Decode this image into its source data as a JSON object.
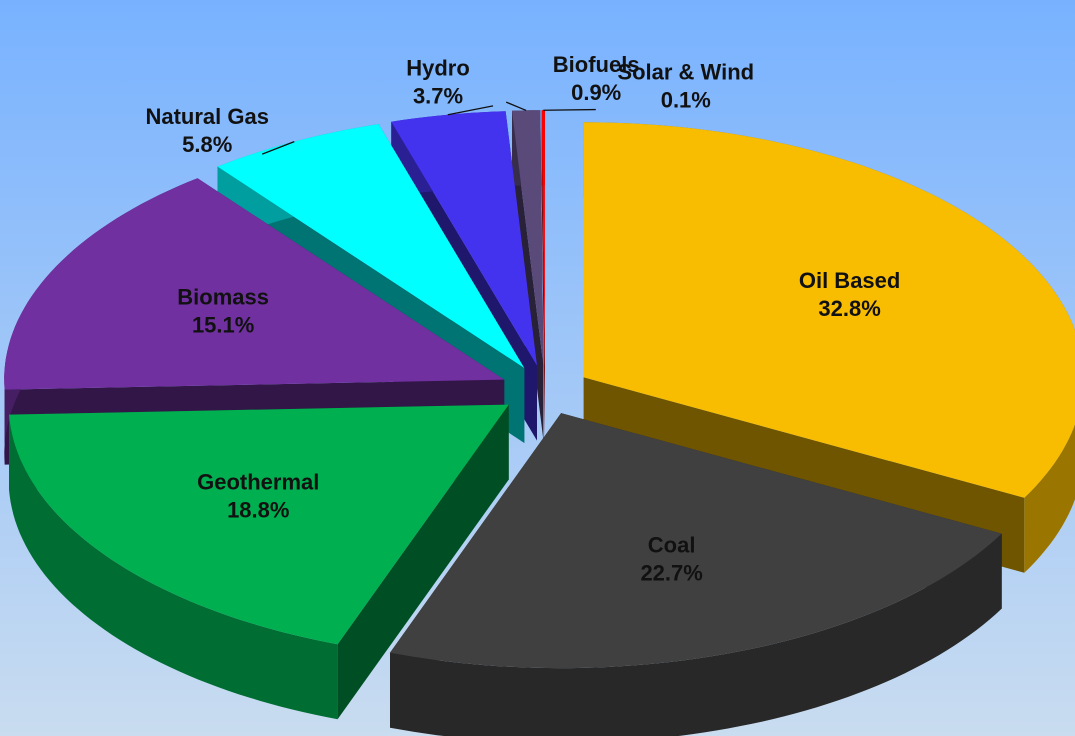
{
  "chart_data": {
    "type": "pie3d",
    "categories": [
      "Oil Based",
      "Coal",
      "Geothermal",
      "Biomass",
      "Natural Gas",
      "Hydro",
      "Biofuels",
      "Solar & Wind"
    ],
    "values": [
      32.8,
      22.7,
      18.8,
      15.1,
      5.8,
      3.7,
      0.9,
      0.1
    ],
    "value_labels": [
      "32.8%",
      "22.7%",
      "18.8%",
      "15.1%",
      "5.8%",
      "3.7%",
      "0.9%",
      "0.1%"
    ],
    "colors": [
      "#f8bc00",
      "#404040",
      "#00b050",
      "#7030a0",
      "#00ffff",
      "#4433ee",
      "#5a4a7a",
      "#ff0000"
    ]
  }
}
